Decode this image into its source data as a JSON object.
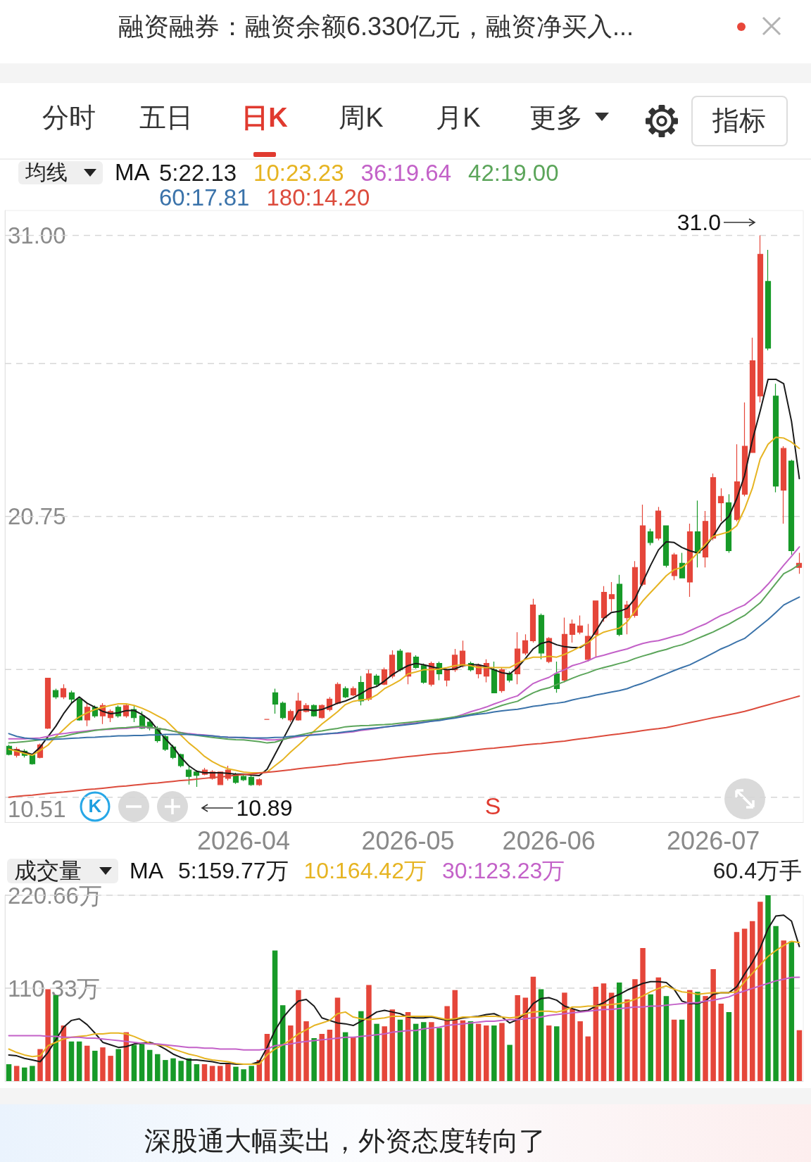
{
  "chart_data": [
    {
      "type": "candlestick",
      "categories": [
        null,
        null,
        null,
        null,
        null,
        null,
        null,
        null,
        null,
        null,
        null,
        null,
        null,
        null,
        null,
        null,
        null,
        null,
        null,
        null,
        null,
        null,
        null,
        null,
        null,
        null,
        null,
        null,
        null,
        null,
        "2026-04",
        null,
        null,
        null,
        null,
        null,
        null,
        null,
        null,
        null,
        null,
        null,
        null,
        null,
        null,
        null,
        null,
        null,
        null,
        null,
        null,
        "2026-05",
        null,
        null,
        null,
        null,
        null,
        null,
        null,
        null,
        null,
        null,
        null,
        null,
        null,
        null,
        null,
        null,
        null,
        "2026-06",
        null,
        null,
        null,
        null,
        null,
        null,
        null,
        null,
        null,
        null,
        null,
        null,
        null,
        null,
        null,
        null,
        null,
        null,
        null,
        null,
        "2026-07",
        null,
        null,
        null,
        null,
        null,
        null,
        null,
        null,
        null,
        null,
        null
      ],
      "ohlc": [
        [
          12.37,
          12.42,
          12.04,
          12.07
        ],
        [
          12.04,
          12.34,
          11.96,
          12.26
        ],
        [
          12.19,
          12.26,
          11.96,
          12.04
        ],
        [
          12.04,
          12.07,
          11.7,
          11.73
        ],
        [
          11.96,
          12.47,
          11.93,
          12.42
        ],
        [
          13.03,
          14.85,
          13.0,
          14.85
        ],
        [
          14.4,
          14.47,
          14.09,
          14.17
        ],
        [
          14.17,
          14.63,
          14.09,
          14.47
        ],
        [
          14.32,
          14.4,
          13.94,
          14.09
        ],
        [
          14.09,
          14.17,
          13.3,
          13.33
        ],
        [
          13.33,
          13.94,
          13.1,
          13.79
        ],
        [
          13.79,
          13.86,
          13.41,
          13.48
        ],
        [
          13.48,
          13.94,
          13.18,
          13.86
        ],
        [
          13.41,
          13.71,
          13.25,
          13.64
        ],
        [
          13.79,
          13.86,
          13.41,
          13.48
        ],
        [
          13.48,
          13.94,
          13.41,
          13.86
        ],
        [
          13.71,
          13.86,
          13.25,
          13.41
        ],
        [
          13.48,
          13.64,
          13.0,
          13.03
        ],
        [
          13.25,
          13.33,
          12.95,
          13.03
        ],
        [
          13.03,
          13.1,
          12.5,
          12.57
        ],
        [
          12.72,
          12.8,
          12.2,
          12.26
        ],
        [
          12.34,
          12.42,
          11.9,
          11.96
        ],
        [
          12.07,
          12.1,
          11.6,
          11.66
        ],
        [
          11.5,
          11.66,
          10.97,
          11.27
        ],
        [
          11.43,
          11.5,
          10.89,
          11.31
        ],
        [
          11.35,
          11.58,
          11.31,
          11.5
        ],
        [
          11.2,
          11.5,
          11.15,
          11.43
        ],
        [
          10.97,
          11.45,
          10.95,
          11.43
        ],
        [
          11.2,
          11.66,
          11.12,
          11.5
        ],
        [
          11.35,
          11.4,
          11.0,
          11.05
        ],
        [
          11.27,
          11.35,
          11.1,
          11.15
        ],
        [
          11.24,
          11.3,
          10.93,
          10.97
        ],
        [
          10.97,
          11.2,
          10.93,
          11.15
        ],
        [
          13.35,
          13.35,
          13.35,
          13.35
        ],
        [
          14.32,
          14.47,
          13.56,
          13.91
        ],
        [
          13.94,
          14.0,
          13.35,
          13.41
        ],
        [
          13.33,
          13.71,
          13.25,
          13.64
        ],
        [
          13.33,
          14.32,
          13.3,
          14.02
        ],
        [
          13.64,
          13.94,
          13.6,
          13.86
        ],
        [
          13.86,
          13.9,
          13.45,
          13.48
        ],
        [
          13.41,
          13.9,
          13.38,
          13.86
        ],
        [
          13.71,
          14.17,
          13.64,
          14.09
        ],
        [
          13.94,
          14.7,
          13.9,
          14.63
        ],
        [
          14.47,
          14.55,
          14.12,
          14.17
        ],
        [
          14.24,
          14.55,
          14.2,
          14.47
        ],
        [
          14.7,
          14.93,
          13.86,
          14.02
        ],
        [
          14.09,
          15.16,
          14.02,
          15.01
        ],
        [
          14.93,
          15.0,
          14.55,
          14.63
        ],
        [
          14.63,
          15.24,
          14.6,
          15.16
        ],
        [
          14.93,
          15.87,
          14.85,
          15.69
        ],
        [
          15.84,
          15.92,
          15.1,
          15.16
        ],
        [
          14.93,
          15.8,
          14.63,
          15.77
        ],
        [
          15.62,
          15.69,
          15.2,
          15.24
        ],
        [
          15.31,
          15.39,
          14.65,
          14.7
        ],
        [
          14.63,
          15.46,
          14.55,
          15.39
        ],
        [
          15.39,
          15.46,
          14.78,
          15.01
        ],
        [
          14.78,
          15.2,
          14.55,
          15.16
        ],
        [
          15.16,
          15.92,
          15.08,
          15.69
        ],
        [
          15.31,
          16.22,
          15.24,
          15.84
        ],
        [
          15.39,
          15.46,
          15.1,
          15.16
        ],
        [
          15.01,
          15.39,
          14.85,
          15.31
        ],
        [
          14.93,
          15.54,
          14.7,
          15.39
        ],
        [
          15.16,
          15.46,
          14.3,
          14.32
        ],
        [
          14.4,
          15.24,
          14.32,
          15.16
        ],
        [
          15.01,
          15.1,
          14.7,
          14.78
        ],
        [
          15.01,
          16.53,
          14.63,
          15.92
        ],
        [
          15.77,
          16.45,
          15.69,
          16.22
        ],
        [
          16.22,
          17.75,
          16.15,
          17.52
        ],
        [
          17.14,
          17.21,
          15.54,
          15.77
        ],
        [
          15.46,
          16.35,
          15.4,
          16.3
        ],
        [
          15.01,
          15.46,
          14.32,
          14.47
        ],
        [
          14.78,
          17.06,
          14.7,
          16.45
        ],
        [
          16.45,
          16.99,
          16.15,
          16.83
        ],
        [
          16.53,
          17.14,
          16.45,
          16.76
        ],
        [
          15.54,
          16.83,
          15.46,
          16.38
        ],
        [
          16.45,
          17.67,
          15.62,
          17.67
        ],
        [
          17.06,
          18.21,
          16.91,
          17.98
        ],
        [
          17.75,
          18.36,
          17.29,
          17.9
        ],
        [
          18.28,
          18.62,
          16.38,
          16.45
        ],
        [
          17.06,
          17.67,
          16.45,
          17.52
        ],
        [
          17.14,
          19.12,
          17.06,
          18.89
        ],
        [
          18.28,
          21.18,
          18.21,
          20.41
        ],
        [
          20.19,
          20.3,
          19.7,
          19.8
        ],
        [
          19.96,
          21.1,
          19.88,
          20.95
        ],
        [
          20.41,
          20.41,
          18.89,
          18.97
        ],
        [
          18.59,
          19.42,
          18.43,
          19.35
        ],
        [
          19.04,
          19.42,
          18.51,
          18.51
        ],
        [
          18.36,
          20.49,
          17.82,
          20.19
        ],
        [
          20.19,
          21.33,
          18.89,
          19.42
        ],
        [
          19.27,
          20.95,
          18.89,
          20.57
        ],
        [
          19.96,
          22.32,
          19.88,
          22.17
        ],
        [
          21.25,
          21.78,
          20.57,
          21.48
        ],
        [
          21.25,
          21.56,
          19.42,
          19.5
        ],
        [
          20.64,
          23.38,
          20.57,
          22.01
        ],
        [
          21.56,
          24.91,
          21.48,
          23.31
        ],
        [
          23.08,
          27.27,
          23.08,
          26.43
        ],
        [
          25.14,
          31.0,
          24.91,
          30.31
        ],
        [
          29.32,
          30.47,
          26.81,
          26.89
        ],
        [
          25.14,
          25.59,
          21.63,
          21.86
        ],
        [
          21.71,
          23.31,
          20.49,
          23.23
        ],
        [
          22.77,
          22.82,
          19.35,
          19.5
        ],
        [
          18.89,
          19.42,
          18.66,
          19.04
        ]
      ],
      "colors": [
        "#179a28",
        "#e5463a",
        "#179a28",
        "#179a28",
        "#e5463a",
        "#e5463a",
        "#179a28",
        "#e5463a",
        "#179a28",
        "#179a28",
        "#e5463a",
        "#179a28",
        "#e5463a",
        "#e5463a",
        "#179a28",
        "#e5463a",
        "#179a28",
        "#179a28",
        "#179a28",
        "#179a28",
        "#179a28",
        "#179a28",
        "#179a28",
        "#179a28",
        "#179a28",
        "#e5463a",
        "#e5463a",
        "#e5463a",
        "#e5463a",
        "#179a28",
        "#179a28",
        "#179a28",
        "#e5463a",
        "#e5463a",
        "#179a28",
        "#179a28",
        "#e5463a",
        "#e5463a",
        "#e5463a",
        "#179a28",
        "#e5463a",
        "#e5463a",
        "#e5463a",
        "#179a28",
        "#e5463a",
        "#179a28",
        "#e5463a",
        "#179a28",
        "#e5463a",
        "#e5463a",
        "#179a28",
        "#e5463a",
        "#179a28",
        "#179a28",
        "#e5463a",
        "#179a28",
        "#e5463a",
        "#e5463a",
        "#e5463a",
        "#179a28",
        "#e5463a",
        "#e5463a",
        "#179a28",
        "#e5463a",
        "#179a28",
        "#e5463a",
        "#e5463a",
        "#e5463a",
        "#179a28",
        "#e5463a",
        "#179a28",
        "#e5463a",
        "#e5463a",
        "#e5463a",
        "#e5463a",
        "#e5463a",
        "#e5463a",
        "#e5463a",
        "#179a28",
        "#e5463a",
        "#e5463a",
        "#e5463a",
        "#179a28",
        "#e5463a",
        "#179a28",
        "#e5463a",
        "#179a28",
        "#e5463a",
        "#179a28",
        "#e5463a",
        "#e5463a",
        "#e5463a",
        "#179a28",
        "#e5463a",
        "#e5463a",
        "#e5463a",
        "#e5463a",
        "#179a28",
        "#179a28",
        "#e5463a",
        "#179a28",
        "#e5463a"
      ],
      "series": [
        {
          "type": "line",
          "name": "5:22.13",
          "color": "#1a1a1a",
          "values": [
            12.26,
            12.22,
            12.16,
            12.07,
            12.34,
            12.72,
            13.1,
            13.56,
            13.94,
            14.17,
            13.94,
            13.79,
            13.64,
            13.56,
            13.59,
            13.67,
            13.68,
            13.53,
            13.33,
            12.98,
            12.64,
            12.34,
            11.96,
            11.66,
            11.46,
            11.4,
            11.4,
            11.4,
            11.38,
            11.35,
            11.35,
            11.32,
            11.3,
            11.53,
            12.07,
            12.61,
            13.15,
            13.68,
            13.71,
            13.67,
            13.71,
            13.82,
            13.94,
            14.02,
            14.14,
            14.29,
            14.47,
            14.55,
            14.75,
            14.98,
            15.16,
            15.31,
            15.39,
            15.34,
            15.27,
            15.2,
            15.16,
            15.19,
            15.31,
            15.34,
            15.34,
            15.27,
            15.16,
            15.05,
            15.01,
            15.24,
            15.57,
            15.92,
            16.12,
            16.19,
            16.07,
            16.0,
            15.97,
            15.97,
            16.15,
            16.57,
            17.03,
            17.25,
            17.29,
            17.4,
            17.75,
            18.36,
            18.97,
            19.53,
            19.83,
            19.8,
            19.62,
            19.5,
            19.42,
            19.65,
            20.03,
            20.49,
            20.75,
            21.4,
            22.24,
            23.53,
            24.6,
            25.75,
            25.75,
            25.59,
            24.22,
            22.13
          ]
        },
        {
          "type": "line",
          "name": "10:23.23",
          "color": "#e6b422",
          "values": [
            12.26,
            12.19,
            12.11,
            12.04,
            12.22,
            12.41,
            12.72,
            12.98,
            13.25,
            13.44,
            13.59,
            13.71,
            13.79,
            13.86,
            13.92,
            13.92,
            13.86,
            13.76,
            13.63,
            13.48,
            13.33,
            13.05,
            12.77,
            12.49,
            12.26,
            12.0,
            11.81,
            11.66,
            11.55,
            11.49,
            11.43,
            11.4,
            11.4,
            11.43,
            11.66,
            11.88,
            12.16,
            12.41,
            12.67,
            12.92,
            13.18,
            13.4,
            13.63,
            13.89,
            14.01,
            14.06,
            14.09,
            14.24,
            14.47,
            14.62,
            14.78,
            15.01,
            15.08,
            15.16,
            15.16,
            15.19,
            15.24,
            15.31,
            15.34,
            15.31,
            15.24,
            15.24,
            15.24,
            15.24,
            15.24,
            15.39,
            15.54,
            15.62,
            15.62,
            15.65,
            15.62,
            15.72,
            15.85,
            16.0,
            16.15,
            16.38,
            16.53,
            16.61,
            16.68,
            16.91,
            17.29,
            17.67,
            17.98,
            18.28,
            18.59,
            18.81,
            18.89,
            19.12,
            19.42,
            19.73,
            20.03,
            20.11,
            20.19,
            20.41,
            21.02,
            21.78,
            22.85,
            23.38,
            23.64,
            23.61,
            23.46,
            23.23
          ]
        },
        {
          "type": "line",
          "name": "36:19.64",
          "color": "#c361c8",
          "values": [
            12.64,
            12.64,
            12.64,
            12.66,
            12.67,
            12.73,
            12.8,
            12.83,
            12.87,
            12.9,
            12.93,
            12.96,
            12.98,
            12.99,
            13.01,
            13.02,
            13.05,
            13.07,
            13.05,
            13.02,
            12.98,
            12.92,
            12.87,
            12.83,
            12.8,
            12.78,
            12.75,
            12.72,
            12.7,
            12.69,
            12.67,
            12.66,
            12.64,
            12.6,
            12.6,
            12.63,
            12.67,
            12.72,
            12.76,
            12.8,
            12.81,
            12.83,
            12.84,
            12.87,
            12.9,
            12.95,
            12.98,
            13.02,
            13.07,
            13.1,
            13.15,
            13.19,
            13.22,
            13.25,
            13.28,
            13.33,
            13.37,
            13.44,
            13.53,
            13.63,
            13.71,
            13.8,
            13.91,
            14.01,
            14.12,
            14.21,
            14.44,
            14.66,
            14.78,
            14.88,
            15.05,
            15.16,
            15.31,
            15.39,
            15.49,
            15.62,
            15.69,
            15.77,
            15.85,
            15.92,
            16.03,
            16.12,
            16.18,
            16.22,
            16.3,
            16.38,
            16.45,
            16.58,
            16.71,
            16.83,
            16.99,
            17.14,
            17.25,
            17.4,
            17.52,
            17.75,
            17.98,
            18.28,
            18.62,
            18.97,
            19.3,
            19.64
          ]
        },
        {
          "type": "line",
          "name": "42:19.00",
          "color": "#5ba55a",
          "values": [
            12.49,
            12.51,
            12.54,
            12.57,
            12.6,
            12.64,
            12.69,
            12.73,
            12.8,
            12.86,
            12.9,
            12.95,
            12.98,
            13.01,
            13.04,
            13.05,
            13.08,
            13.1,
            13.07,
            13.02,
            12.98,
            12.92,
            12.86,
            12.8,
            12.77,
            12.73,
            12.69,
            12.66,
            12.63,
            12.61,
            12.6,
            12.57,
            12.54,
            12.49,
            12.52,
            12.61,
            12.7,
            12.77,
            12.83,
            12.89,
            12.93,
            12.98,
            13.02,
            13.08,
            13.1,
            13.12,
            13.13,
            13.15,
            13.16,
            13.18,
            13.21,
            13.24,
            13.27,
            13.3,
            13.33,
            13.36,
            13.4,
            13.44,
            13.48,
            13.54,
            13.59,
            13.66,
            13.76,
            13.86,
            13.94,
            14.01,
            14.17,
            14.32,
            14.43,
            14.5,
            14.62,
            14.73,
            14.85,
            14.96,
            15.05,
            15.16,
            15.24,
            15.31,
            15.39,
            15.46,
            15.57,
            15.66,
            15.74,
            15.83,
            15.9,
            16.0,
            16.07,
            16.18,
            16.3,
            16.42,
            16.54,
            16.68,
            16.82,
            16.99,
            17.14,
            17.37,
            17.6,
            17.95,
            18.31,
            18.66,
            18.81,
            19.0
          ]
        },
        {
          "type": "line",
          "name": "60:17.81",
          "color": "#3b73aa",
          "values": [
            12.83,
            12.73,
            12.67,
            12.64,
            12.61,
            12.61,
            12.63,
            12.64,
            12.66,
            12.67,
            12.69,
            12.7,
            12.72,
            12.73,
            12.75,
            12.75,
            12.76,
            12.76,
            12.78,
            12.78,
            12.8,
            12.8,
            12.8,
            12.8,
            12.78,
            12.76,
            12.75,
            12.72,
            12.7,
            12.69,
            12.69,
            12.67,
            12.67,
            12.67,
            12.69,
            12.7,
            12.73,
            12.75,
            12.76,
            12.78,
            12.81,
            12.83,
            12.86,
            12.9,
            12.93,
            12.98,
            13.01,
            13.04,
            13.07,
            13.1,
            13.13,
            13.16,
            13.19,
            13.24,
            13.28,
            13.31,
            13.36,
            13.4,
            13.45,
            13.5,
            13.54,
            13.57,
            13.62,
            13.66,
            13.69,
            13.72,
            13.77,
            13.83,
            13.86,
            13.91,
            13.94,
            13.98,
            14.06,
            14.12,
            14.17,
            14.24,
            14.29,
            14.35,
            14.4,
            14.47,
            14.58,
            14.67,
            14.78,
            14.9,
            15.01,
            15.13,
            15.24,
            15.34,
            15.48,
            15.62,
            15.77,
            15.92,
            16.04,
            16.18,
            16.3,
            16.53,
            16.76,
            16.99,
            17.25,
            17.52,
            17.67,
            17.81
          ]
        },
        {
          "type": "line",
          "name": "180:14.20",
          "color": "#dc4b3c",
          "values": [
            10.51,
            10.54,
            10.57,
            10.59,
            10.62,
            10.65,
            10.68,
            10.7,
            10.73,
            10.76,
            10.79,
            10.81,
            10.84,
            10.87,
            10.9,
            10.92,
            10.95,
            10.98,
            11.01,
            11.03,
            11.06,
            11.09,
            11.12,
            11.14,
            11.17,
            11.2,
            11.23,
            11.25,
            11.28,
            11.31,
            11.34,
            11.36,
            11.39,
            11.42,
            11.45,
            11.48,
            11.51,
            11.55,
            11.58,
            11.61,
            11.64,
            11.67,
            11.7,
            11.74,
            11.77,
            11.8,
            11.83,
            11.86,
            11.89,
            11.93,
            11.96,
            11.99,
            12.02,
            12.05,
            12.08,
            12.11,
            12.13,
            12.16,
            12.19,
            12.22,
            12.25,
            12.28,
            12.3,
            12.33,
            12.36,
            12.39,
            12.42,
            12.45,
            12.47,
            12.5,
            12.53,
            12.56,
            12.6,
            12.64,
            12.67,
            12.71,
            12.75,
            12.79,
            12.82,
            12.86,
            12.9,
            12.94,
            12.98,
            13.01,
            13.05,
            13.11,
            13.17,
            13.23,
            13.29,
            13.35,
            13.41,
            13.46,
            13.52,
            13.58,
            13.64,
            13.72,
            13.8,
            13.88,
            13.96,
            14.04,
            14.12,
            14.2
          ]
        }
      ],
      "ylim": [
        9.59,
        31.91
      ],
      "yticks": [
        {
          "value": 31,
          "label": "31.00"
        },
        {
          "value": 26.33,
          "label": null
        },
        20.75,
        {
          "value": 15.17,
          "label": null
        },
        10.51
      ],
      "grid": "y",
      "legend": "top left",
      "marker": "none",
      "annotations": [
        "融资融券：融资余额6.330亿元，融资净买入...",
        "分时",
        "五日",
        "日K",
        "周K",
        "月K",
        "更多",
        "指标",
        "均线",
        "MA",
        "31.0",
        {
          "text": "10.89",
          "y": 10.89
        },
        "S",
        "K"
      ]
    },
    {
      "type": "bar",
      "categories": [
        null,
        null,
        null,
        null,
        null,
        null,
        null,
        null,
        null,
        null,
        null,
        null,
        null,
        null,
        null,
        null,
        null,
        null,
        null,
        null,
        null,
        null,
        null,
        null,
        null,
        null,
        null,
        null,
        null,
        null,
        "2026-04",
        null,
        null,
        null,
        null,
        null,
        null,
        null,
        null,
        null,
        null,
        null,
        null,
        null,
        null,
        null,
        null,
        null,
        null,
        null,
        null,
        "2026-05",
        null,
        null,
        null,
        null,
        null,
        null,
        null,
        null,
        null,
        null,
        null,
        null,
        null,
        null,
        null,
        null,
        null,
        "2026-06",
        null,
        null,
        null,
        null,
        null,
        null,
        null,
        null,
        null,
        null,
        null,
        null,
        null,
        null,
        null,
        null,
        null,
        null,
        null,
        null,
        "2026-07",
        null,
        null,
        null,
        null,
        null,
        null,
        null,
        null,
        null,
        null,
        null
      ],
      "series": [
        {
          "values": [
            20,
            18,
            16,
            18,
            38,
            109,
            102,
            66,
            47,
            47,
            42,
            36,
            40,
            30,
            38,
            58,
            43,
            46,
            37,
            32,
            25,
            27,
            24,
            27,
            20,
            20,
            18,
            18,
            20,
            17,
            14,
            18,
            25,
            56,
            155,
            90,
            66,
            108,
            71,
            51,
            56,
            61,
            99,
            58,
            52,
            83,
            114,
            68,
            65,
            85,
            73,
            82,
            68,
            70,
            70,
            63,
            89,
            108,
            72,
            71,
            68,
            66,
            66,
            69,
            43,
            102,
            99,
            124,
            109,
            66,
            65,
            105,
            86,
            71,
            53,
            112,
            116,
            105,
            117,
            97,
            121,
            158,
            103,
            123,
            101,
            73,
            73,
            108,
            106,
            101,
            133,
            92,
            82,
            177,
            181,
            190,
            213,
            220.66,
            184,
            167,
            166,
            60.4
          ],
          "colors": [
            "#179a28",
            "#e5463a",
            "#179a28",
            "#179a28",
            "#e5463a",
            "#e5463a",
            "#179a28",
            "#e5463a",
            "#179a28",
            "#179a28",
            "#e5463a",
            "#179a28",
            "#e5463a",
            "#e5463a",
            "#179a28",
            "#e5463a",
            "#179a28",
            "#179a28",
            "#179a28",
            "#179a28",
            "#179a28",
            "#179a28",
            "#179a28",
            "#179a28",
            "#179a28",
            "#e5463a",
            "#e5463a",
            "#e5463a",
            "#e5463a",
            "#179a28",
            "#179a28",
            "#179a28",
            "#e5463a",
            "#e5463a",
            "#179a28",
            "#179a28",
            "#e5463a",
            "#e5463a",
            "#e5463a",
            "#179a28",
            "#e5463a",
            "#e5463a",
            "#e5463a",
            "#179a28",
            "#e5463a",
            "#179a28",
            "#e5463a",
            "#179a28",
            "#e5463a",
            "#e5463a",
            "#179a28",
            "#e5463a",
            "#179a28",
            "#179a28",
            "#e5463a",
            "#179a28",
            "#e5463a",
            "#e5463a",
            "#e5463a",
            "#179a28",
            "#e5463a",
            "#e5463a",
            "#179a28",
            "#e5463a",
            "#179a28",
            "#e5463a",
            "#e5463a",
            "#e5463a",
            "#179a28",
            "#e5463a",
            "#179a28",
            "#e5463a",
            "#e5463a",
            "#e5463a",
            "#e5463a",
            "#e5463a",
            "#e5463a",
            "#e5463a",
            "#179a28",
            "#e5463a",
            "#e5463a",
            "#e5463a",
            "#179a28",
            "#e5463a",
            "#179a28",
            "#e5463a",
            "#179a28",
            "#e5463a",
            "#179a28",
            "#e5463a",
            "#e5463a",
            "#e5463a",
            "#179a28",
            "#e5463a",
            "#e5463a",
            "#e5463a",
            "#e5463a",
            "#179a28",
            "#179a28",
            "#e5463a",
            "#179a28",
            "#e5463a"
          ]
        },
        {
          "type": "line",
          "name": "5:159.77万",
          "color": "#1a1a1a",
          "values": [
            31,
            30,
            27,
            25,
            23,
            34,
            49,
            64,
            72,
            74,
            67,
            57,
            46,
            43,
            40,
            41,
            44,
            45,
            46,
            43,
            38,
            32,
            28,
            25,
            25,
            24,
            23,
            21,
            21,
            20,
            20,
            20,
            23,
            40,
            60,
            75,
            86,
            95,
            97,
            89,
            75,
            72,
            69,
            68,
            66,
            71,
            76,
            82,
            84,
            82,
            80,
            76,
            75,
            75,
            76,
            74,
            72,
            73,
            75,
            76,
            77,
            79,
            80,
            76,
            69,
            73,
            80,
            92,
            98,
            99,
            96,
            89,
            86,
            83,
            84,
            89,
            93,
            99,
            103,
            108,
            112,
            116,
            118,
            118,
            117,
            109,
            95,
            92,
            92,
            95,
            103,
            105,
            105,
            112,
            127,
            141,
            158,
            181,
            196,
            197,
            190,
            159.77
          ]
        },
        {
          "type": "line",
          "name": "10:164.42万",
          "color": "#e6b422",
          "values": [
            38,
            34,
            31,
            29,
            30,
            42,
            46,
            50,
            52,
            53,
            54,
            56,
            56,
            57,
            57,
            56,
            53,
            49,
            45,
            43,
            42,
            38,
            35,
            32,
            30,
            27,
            25,
            24,
            23,
            21,
            20,
            20,
            20,
            31,
            38,
            43,
            49,
            56,
            61,
            66,
            69,
            72,
            80,
            82,
            76,
            74,
            73,
            74,
            75,
            77,
            77,
            77,
            77,
            77,
            77,
            75,
            73,
            74,
            76,
            76,
            76,
            77,
            77,
            76,
            75,
            76,
            80,
            82,
            83,
            83,
            82,
            84,
            88,
            88,
            89,
            89,
            90,
            91,
            92,
            94,
            97,
            101,
            106,
            110,
            113,
            109,
            106,
            105,
            103,
            104,
            105,
            105,
            105,
            106,
            118,
            128,
            138,
            148,
            155,
            161,
            166,
            164.42
          ]
        },
        {
          "type": "line",
          "name": "30:123.23万",
          "color": "#c361c8",
          "values": [
            54,
            54,
            54,
            54,
            54,
            53,
            53,
            52,
            52,
            52,
            51,
            51,
            50,
            49,
            48,
            47,
            46,
            45,
            44,
            44,
            43,
            42,
            41,
            40,
            40,
            39,
            39,
            38,
            38,
            38,
            37,
            37,
            37,
            38,
            42,
            43,
            44,
            46,
            47,
            48,
            49,
            50,
            51,
            52,
            52,
            53,
            54,
            55,
            56,
            58,
            59,
            60,
            60,
            62,
            63,
            64,
            66,
            67,
            68,
            69,
            70,
            71,
            71,
            72,
            73,
            73,
            74,
            75,
            76,
            78,
            79,
            80,
            81,
            82,
            83,
            84,
            85,
            85,
            86,
            87,
            88,
            88,
            89,
            89,
            90,
            91,
            92,
            93,
            93,
            95,
            96,
            98,
            100,
            104,
            107,
            110,
            113,
            116,
            119,
            121,
            123,
            123.23
          ]
        }
      ],
      "ylim": [
        0,
        220.66
      ],
      "yticks": [
        {
          "value": 220.66,
          "label": "220.66万"
        },
        {
          "value": 110.33,
          "label": "110.33万"
        }
      ],
      "grid": "y",
      "legend": "top left",
      "marker": "none",
      "tick_labels": "y",
      "annotations": [
        "成交量",
        "MA",
        "60.4万手",
        "深股通大幅卖出，外资态度转向了"
      ]
    }
  ]
}
